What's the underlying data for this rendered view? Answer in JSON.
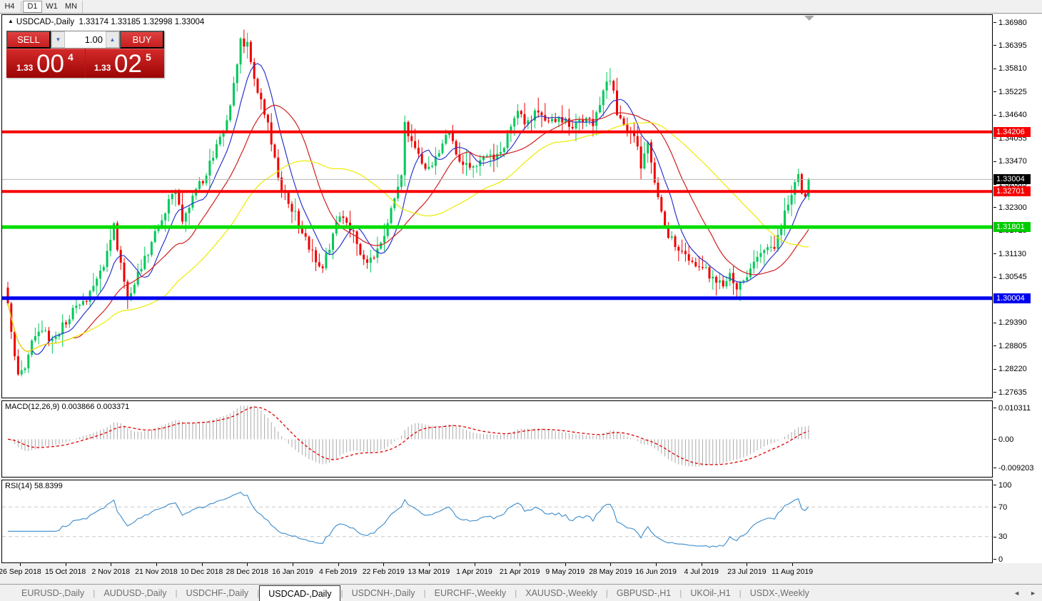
{
  "toolbar": {
    "timeframes": [
      {
        "label": "H4",
        "active": false
      },
      {
        "label": "D1",
        "active": true
      },
      {
        "label": "W1",
        "active": false
      },
      {
        "label": "MN",
        "active": false
      }
    ]
  },
  "chart": {
    "title_symbol": "USDCAD-,Daily",
    "title_quotes": "1.33174 1.33185 1.32998 1.33004",
    "ohlc": {
      "open": "1.33174",
      "high": "1.33185",
      "low": "1.32998",
      "close": "1.33004"
    }
  },
  "trade": {
    "sell_label": "SELL",
    "buy_label": "BUY",
    "volume": "1.00",
    "spin_down_icon": "▼",
    "spin_up_icon": "▲",
    "sell_price": {
      "prefix": "1.33",
      "big": "00",
      "sup": "4",
      "full": "1.33004"
    },
    "buy_price": {
      "prefix": "1.33",
      "big": "02",
      "sup": "5",
      "full": "1.33025"
    }
  },
  "price_axis": {
    "ticks": [
      "1.36980",
      "1.36395",
      "1.35810",
      "1.35225",
      "1.34640",
      "1.34055",
      "1.33470",
      "1.32885",
      "1.32300",
      "1.31715",
      "1.31130",
      "1.30545",
      "1.29390",
      "1.28805",
      "1.28220",
      "1.27635"
    ],
    "badges": [
      {
        "label": "1.34206",
        "bg": "#f80000",
        "role": "resistance-line-price"
      },
      {
        "label": "1.33004",
        "bg": "#000000",
        "role": "current-price"
      },
      {
        "label": "1.32701",
        "bg": "#f80000",
        "role": "support-line-price"
      },
      {
        "label": "1.31801",
        "bg": "#00cc00",
        "role": "support-line-price"
      },
      {
        "label": "1.30004",
        "bg": "#0000f0",
        "role": "support-line-price"
      }
    ]
  },
  "x_axis": {
    "dates": [
      "26 Sep 2018",
      "15 Oct 2018",
      "2 Nov 2018",
      "21 Nov 2018",
      "10 Dec 2018",
      "28 Dec 2018",
      "16 Jan 2019",
      "4 Feb 2019",
      "22 Feb 2019",
      "13 Mar 2019",
      "1 Apr 2019",
      "21 Apr 2019",
      "9 May 2019",
      "28 May 2019",
      "16 Jun 2019",
      "4 Jul 2019",
      "23 Jul 2019",
      "11 Aug 2019"
    ]
  },
  "indicators": {
    "macd": {
      "name": "MACD(12,26,9)",
      "values": "0.003866 0.003371",
      "axis_labels": [
        "0.010311",
        "0.00",
        "-0.009203"
      ],
      "axis_values": [
        0.010311,
        0,
        -0.009203
      ]
    },
    "rsi": {
      "name": "RSI(14)",
      "value": "58.8399",
      "axis_labels": [
        "100",
        "70",
        "30",
        "0"
      ],
      "axis_values": [
        100,
        70,
        30,
        0
      ],
      "dashed_levels": [
        70,
        30
      ]
    }
  },
  "tabs": {
    "items": [
      {
        "label": "EURUSD-,Daily",
        "active": false
      },
      {
        "label": "AUDUSD-,Daily",
        "active": false
      },
      {
        "label": "USDCHF-,Daily",
        "active": false
      },
      {
        "label": "USDCAD-,Daily",
        "active": true
      },
      {
        "label": "USDCNH-,Daily",
        "active": false
      },
      {
        "label": "EURCHF-,Weekly",
        "active": false
      },
      {
        "label": "XAUUSD-,Weekly",
        "active": false
      },
      {
        "label": "GBPUSD-,H1",
        "active": false
      },
      {
        "label": "UKOil-,H1",
        "active": false
      },
      {
        "label": "USDX-,Weekly",
        "active": false
      }
    ],
    "scroll_left_icon": "◄",
    "scroll_right_icon": "►"
  },
  "chart_data": {
    "type": "candlestick",
    "symbol": "USDCAD-,Daily",
    "candle_count": 235,
    "price_axis_range": [
      1.27635,
      1.3698
    ],
    "current_price": 1.33004,
    "horizontal_levels": [
      {
        "price": 1.34206,
        "color": "#f80000",
        "thickness": 4
      },
      {
        "price": 1.32701,
        "color": "#f80000",
        "thickness": 4
      },
      {
        "price": 1.31801,
        "color": "#00dd00",
        "thickness": 5
      },
      {
        "price": 1.30004,
        "color": "#0000f0",
        "thickness": 5
      }
    ],
    "current_price_line": {
      "price": 1.33004,
      "color": "#b4b4b4"
    },
    "price_path": {
      "indices": [
        0,
        1,
        3,
        5,
        7,
        10,
        13,
        16,
        19,
        22,
        25,
        27,
        29,
        31,
        33,
        35,
        37,
        39,
        41,
        43,
        45,
        47,
        49,
        51,
        53,
        55,
        57,
        59,
        61,
        63,
        65,
        66,
        67,
        68,
        69,
        70,
        71,
        72,
        74,
        76,
        78,
        80,
        82,
        84,
        86,
        88,
        90,
        92,
        93,
        95,
        97,
        99,
        101,
        103,
        105,
        107,
        109,
        111,
        113,
        115,
        116,
        117,
        119,
        121,
        123,
        125,
        127,
        129,
        131,
        133,
        135,
        137,
        139,
        141,
        143,
        145,
        147,
        149,
        151,
        153,
        155,
        157,
        159,
        161,
        163,
        165,
        167,
        169,
        171,
        173,
        175,
        176,
        177,
        178,
        180,
        182,
        184,
        185,
        186,
        187,
        189,
        191,
        193,
        195,
        197,
        200,
        203,
        206,
        209,
        211,
        213,
        215,
        217,
        219,
        221,
        223,
        225,
        227,
        229,
        230,
        231,
        232,
        233,
        234
      ],
      "closes": [
        1.299,
        1.292,
        1.28,
        1.283,
        1.29,
        1.292,
        1.289,
        1.293,
        1.2965,
        1.2985,
        1.303,
        1.306,
        1.311,
        1.318,
        1.308,
        1.2995,
        1.304,
        1.308,
        1.312,
        1.316,
        1.32,
        1.324,
        1.327,
        1.319,
        1.323,
        1.328,
        1.33,
        1.334,
        1.338,
        1.342,
        1.348,
        1.3545,
        1.36,
        1.3655,
        1.363,
        1.364,
        1.36,
        1.356,
        1.35,
        1.344,
        1.335,
        1.328,
        1.324,
        1.321,
        1.316,
        1.313,
        1.31,
        1.307,
        1.3105,
        1.316,
        1.3215,
        1.32,
        1.316,
        1.3115,
        1.3085,
        1.31,
        1.314,
        1.318,
        1.326,
        1.332,
        1.344,
        1.341,
        1.337,
        1.334,
        1.333,
        1.3355,
        1.339,
        1.3415,
        1.3365,
        1.334,
        1.333,
        1.3335,
        1.335,
        1.3355,
        1.3365,
        1.339,
        1.343,
        1.3465,
        1.345,
        1.346,
        1.347,
        1.3455,
        1.3445,
        1.3465,
        1.3445,
        1.343,
        1.345,
        1.346,
        1.344,
        1.349,
        1.354,
        1.356,
        1.352,
        1.347,
        1.343,
        1.3425,
        1.3375,
        1.333,
        1.337,
        1.3385,
        1.33,
        1.3215,
        1.316,
        1.3135,
        1.3115,
        1.3095,
        1.308,
        1.305,
        1.3035,
        1.306,
        1.303,
        1.3045,
        1.3075,
        1.31,
        1.313,
        1.312,
        1.315,
        1.322,
        1.327,
        1.33,
        1.332,
        1.3275,
        1.325,
        1.33004
      ]
    },
    "candle_colors": {
      "bull": "#00c85a",
      "bull_border": "#00aa4a",
      "bear": "#f00000"
    },
    "moving_averages": [
      {
        "name": "fast-ma",
        "period": 8,
        "color": "#2b35c8"
      },
      {
        "name": "mid-ma",
        "period": 20,
        "color": "#d02020"
      },
      {
        "name": "slow-ma",
        "period": 45,
        "color": "#ecec00"
      }
    ],
    "macd": {
      "fast": 12,
      "slow": 26,
      "signal": 9,
      "histogram_color": "#a9a9a9",
      "signal_color": "#e00000",
      "axis_max": 0.010311,
      "axis_min": -0.009203,
      "current_main": 0.003866,
      "current_signal": 0.003371
    },
    "rsi": {
      "period": 14,
      "line_color": "#3b8ccc",
      "level_color": "#c8c8c8",
      "current": 58.8399,
      "axis": [
        0,
        100
      ]
    }
  }
}
